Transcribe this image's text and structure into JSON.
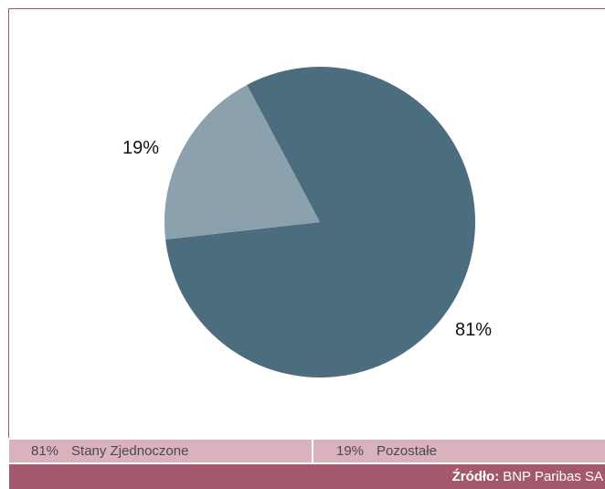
{
  "chart_data": {
    "type": "pie",
    "slices": [
      {
        "label": "Stany Zjednoczone",
        "value": 81,
        "value_label": "81%",
        "color": "#4c6d7e"
      },
      {
        "label": "Pozostałe",
        "value": 19,
        "value_label": "19%",
        "color": "#8ca1ae"
      }
    ],
    "legend_placement": "bottom"
  },
  "legend": [
    {
      "pct": "81%",
      "label": "Stany Zjednoczone"
    },
    {
      "pct": "19%",
      "label": "Pozostałe"
    }
  ],
  "source": {
    "prefix": "Źródło:",
    "text": "BNP Paribas SA"
  }
}
